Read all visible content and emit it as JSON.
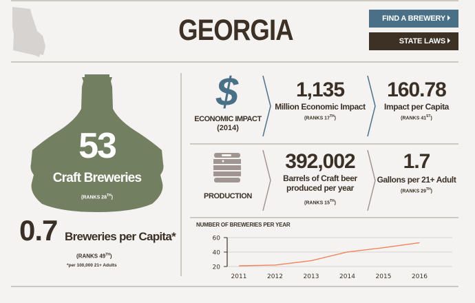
{
  "header": {
    "state_name": "GEORGIA",
    "state_shape_icon": "georgia-state-outline-icon",
    "buttons": {
      "find_brewery": "FIND A BREWERY",
      "state_laws": "STATE LAWS"
    },
    "colors": {
      "find_brewery_bg": "#4a7088",
      "state_laws_bg": "#3d3125"
    }
  },
  "breweries": {
    "count": "53",
    "label": "Craft Breweries",
    "rank_prefix": "(RANKS 28",
    "rank_suffix": "TH",
    "rank_close": ")",
    "icon": "brew-kettle-icon",
    "color": "#737f61"
  },
  "per_capita": {
    "value": "0.7",
    "label": "Breweries per Capita*",
    "rank_prefix": "(RANKS 49",
    "rank_suffix": "TH",
    "rank_close": ")",
    "footnote": "*per 100,000 21+ Adults"
  },
  "economic_impact": {
    "icon": "dollar-sign-icon",
    "title": "ECONOMIC IMPACT",
    "year": "(2014)",
    "stats": [
      {
        "value": "1,135",
        "label": "Million Economic Impact",
        "rank_prefix": "(RANKS 17",
        "rank_suffix": "TH",
        "rank_close": ")"
      },
      {
        "value": "160.78",
        "label": "Impact per Capita",
        "rank_prefix": "(RANKS 41",
        "rank_suffix": "ST",
        "rank_close": ")"
      }
    ]
  },
  "production": {
    "icon": "keg-icon",
    "title": "PRODUCTION",
    "stats": [
      {
        "value": "392,002",
        "label_line1": "Barrels of Craft beer",
        "label_line2": "produced per year",
        "rank_prefix": "(RANKS 15",
        "rank_suffix": "TH",
        "rank_close": ")"
      },
      {
        "value": "1.7",
        "label": "Gallons per 21+ Adult",
        "rank_prefix": "(RANKS 29",
        "rank_suffix": "TH",
        "rank_close": ")"
      }
    ]
  },
  "chart_data": {
    "type": "line",
    "title": "NUMBER OF BREWERIES PER YEAR",
    "categories": [
      "2011",
      "2012",
      "2013",
      "2014",
      "2015",
      "2016"
    ],
    "series": [
      {
        "name": "Breweries",
        "values": [
          21,
          22,
          28,
          40,
          46,
          53
        ],
        "color": "#f0825c"
      }
    ],
    "yticks": [
      "60",
      "40",
      "20"
    ],
    "ylim": [
      20,
      60
    ],
    "xlabel": "",
    "ylabel": "",
    "grid": true
  }
}
